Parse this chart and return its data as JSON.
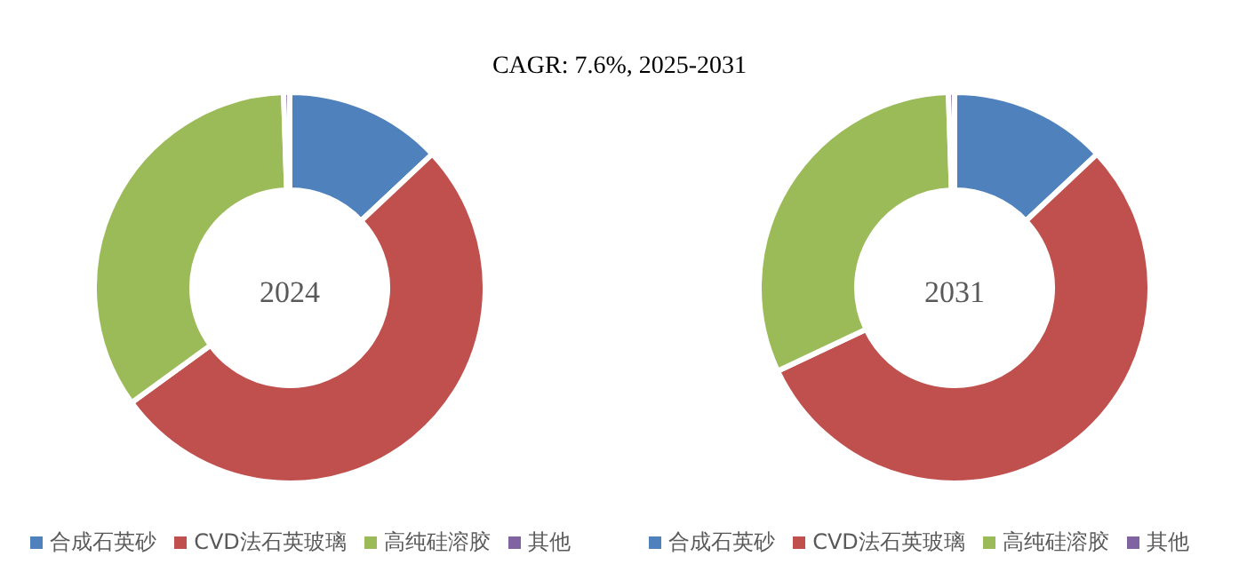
{
  "chart_data": [
    {
      "type": "donut",
      "title": "CAGR:  7.6%, 2025-2031",
      "annotations": [
        "2024"
      ],
      "categories": [
        "合成石英砂",
        "CVD法石英玻璃",
        "高纯硅溶胶",
        "其他"
      ],
      "values": [
        13,
        52,
        34.5,
        0.5
      ],
      "colors": [
        "#4f81bd",
        "#c0504d",
        "#9bbb59",
        "#8064a2"
      ],
      "legend": "bottom"
    },
    {
      "type": "donut",
      "annotations": [
        "2031"
      ],
      "categories": [
        "合成石英砂",
        "CVD法石英玻璃",
        "高纯硅溶胶",
        "其他"
      ],
      "values": [
        13,
        55,
        31.5,
        0.5
      ],
      "colors": [
        "#4f81bd",
        "#c0504d",
        "#9bbb59",
        "#8064a2"
      ],
      "legend": "bottom"
    }
  ]
}
